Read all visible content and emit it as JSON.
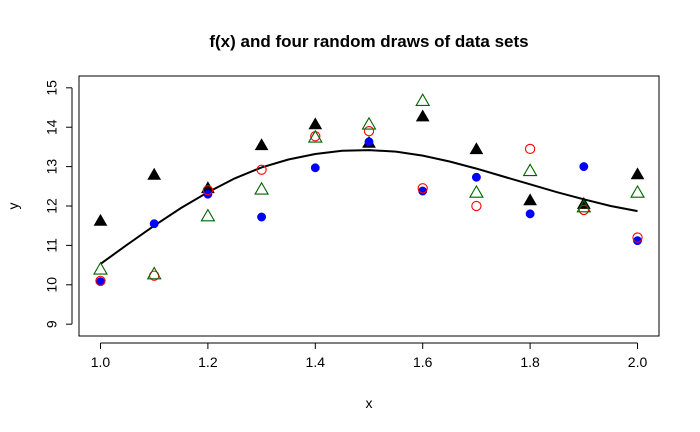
{
  "chart_data": {
    "type": "scatter",
    "title": "f(x) and four random draws of data sets",
    "xlabel": "x",
    "ylabel": "y",
    "xlim": [
      0.96,
      2.04
    ],
    "ylim": [
      8.7,
      15.3
    ],
    "x_ticks": [
      "1.0",
      "1.2",
      "1.4",
      "1.6",
      "1.8",
      "2.0"
    ],
    "x_tick_values": [
      1.0,
      1.2,
      1.4,
      1.6,
      1.8,
      2.0
    ],
    "y_ticks": [
      "9",
      "10",
      "11",
      "12",
      "13",
      "14",
      "15"
    ],
    "y_tick_values": [
      9,
      10,
      11,
      12,
      13,
      14,
      15
    ],
    "grid": false,
    "curve": {
      "label": "f(x)",
      "color": "#000000",
      "points": [
        [
          1.0,
          10.53
        ],
        [
          1.05,
          11.02
        ],
        [
          1.1,
          11.5
        ],
        [
          1.15,
          11.95
        ],
        [
          1.2,
          12.35
        ],
        [
          1.25,
          12.7
        ],
        [
          1.3,
          12.98
        ],
        [
          1.35,
          13.18
        ],
        [
          1.4,
          13.32
        ],
        [
          1.45,
          13.4
        ],
        [
          1.5,
          13.42
        ],
        [
          1.55,
          13.38
        ],
        [
          1.6,
          13.28
        ],
        [
          1.65,
          13.13
        ],
        [
          1.7,
          12.95
        ],
        [
          1.75,
          12.75
        ],
        [
          1.8,
          12.55
        ],
        [
          1.85,
          12.35
        ],
        [
          1.9,
          12.17
        ],
        [
          1.95,
          12.0
        ],
        [
          2.0,
          11.87
        ]
      ]
    },
    "series": [
      {
        "marker": "filled-triangle",
        "color": "#000000",
        "x": [
          1.0,
          1.1,
          1.2,
          1.3,
          1.4,
          1.5,
          1.6,
          1.7,
          1.8,
          1.9,
          2.0
        ],
        "y": [
          11.6,
          12.77,
          12.43,
          13.52,
          14.05,
          13.58,
          14.25,
          13.42,
          12.12,
          12.03,
          12.78
        ]
      },
      {
        "marker": "filled-circle",
        "color": "#0000ff",
        "x": [
          1.0,
          1.1,
          1.2,
          1.3,
          1.4,
          1.5,
          1.6,
          1.7,
          1.8,
          1.9,
          2.0
        ],
        "y": [
          10.08,
          11.55,
          12.3,
          11.72,
          12.97,
          13.63,
          12.38,
          12.73,
          11.8,
          13.0,
          11.12
        ]
      },
      {
        "marker": "open-circle",
        "color": "#ff0000",
        "x": [
          1.0,
          1.1,
          1.2,
          1.3,
          1.4,
          1.5,
          1.6,
          1.7,
          1.8,
          1.9,
          2.0
        ],
        "y": [
          10.1,
          10.23,
          12.4,
          12.92,
          13.77,
          13.9,
          12.45,
          12.0,
          13.45,
          11.9,
          11.2
        ]
      },
      {
        "marker": "open-triangle",
        "color": "#006400",
        "x": [
          1.0,
          1.1,
          1.2,
          1.3,
          1.4,
          1.5,
          1.6,
          1.7,
          1.8,
          1.9,
          2.0
        ],
        "y": [
          10.37,
          10.25,
          11.72,
          12.4,
          13.72,
          14.05,
          14.65,
          12.32,
          12.87,
          11.95,
          12.32
        ]
      }
    ]
  }
}
